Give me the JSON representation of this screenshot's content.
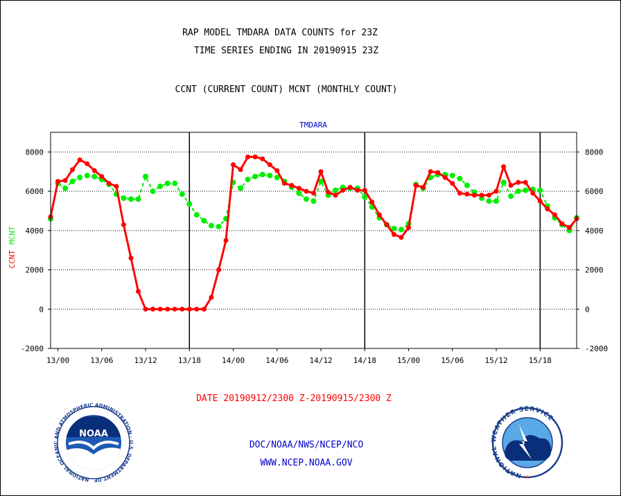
{
  "header": {
    "title_line1": "RAP MODEL TMDARA DATA COUNTS for 23Z",
    "title_line2": "TIME SERIES ENDING IN 20190915 23Z",
    "subtitle": "CCNT (CURRENT COUNT) MCNT (MONTHLY COUNT)"
  },
  "footer": {
    "date_range": "DATE 20190912/2300 Z-20190915/2300 Z",
    "org_line": "DOC/NOAA/NWS/NCEP/NCO",
    "url_line": "WWW.NCEP.NOAA.GOV",
    "noaa_logo_text": "NOAA",
    "noaa_ring_text": "NATIONAL OCEANIC AND ATMOSPHERIC ADMINISTRATION · U.S. DEPARTMENT OF COMMERCE ·",
    "nws_ring_text": "NATIONAL WEATHER SERVICE"
  },
  "colors": {
    "ccnt": "#ff0000",
    "mcnt": "#00ee00",
    "title": "#000000",
    "blue_text": "#0000cc",
    "red_text": "#ff0000"
  },
  "chart_data": {
    "type": "line",
    "title": "TMDARA",
    "ylabel_left_parts": [
      "CCNT",
      "MCNT"
    ],
    "ylim": [
      -2000,
      9000
    ],
    "y_ticks": [
      -2000,
      0,
      2000,
      4000,
      6000,
      8000
    ],
    "x_ticks": [
      "13/00",
      "13/06",
      "13/12",
      "13/18",
      "14/00",
      "14/06",
      "14/12",
      "14/18",
      "15/00",
      "15/06",
      "15/12",
      "15/18"
    ],
    "x_tick_hours": [
      1,
      7,
      13,
      19,
      25,
      31,
      37,
      43,
      49,
      55,
      61,
      67
    ],
    "day_boundaries_hours": [
      19,
      43,
      67
    ],
    "x_range_hours": [
      0,
      72
    ],
    "x_unit": "hours since 2019-09-12 23Z",
    "grid": true,
    "series": [
      {
        "name": "CCNT",
        "color": "#ff0000",
        "values": [
          4700,
          6500,
          6550,
          7100,
          7600,
          7400,
          7050,
          6750,
          6400,
          6250,
          4300,
          2600,
          900,
          0,
          0,
          0,
          0,
          0,
          0,
          0,
          0,
          0,
          600,
          2000,
          3500,
          7350,
          7100,
          7750,
          7750,
          7650,
          7350,
          7050,
          6400,
          6300,
          6150,
          6000,
          5900,
          7000,
          5950,
          5800,
          6050,
          6200,
          6050,
          6050,
          5450,
          4800,
          4300,
          3800,
          3650,
          4150,
          6300,
          6200,
          7000,
          6950,
          6700,
          6400,
          5900,
          5850,
          5800,
          5800,
          5800,
          6000,
          7250,
          6300,
          6450,
          6450,
          5900,
          5500,
          5100,
          4800,
          4350,
          4150,
          4600
        ]
      },
      {
        "name": "MCNT",
        "color": "#00ee00",
        "values": [
          4600,
          6400,
          6150,
          6500,
          6700,
          6800,
          6750,
          6600,
          6350,
          5850,
          5650,
          5600,
          5600,
          6750,
          6000,
          6250,
          6400,
          6400,
          5850,
          5350,
          4800,
          4500,
          4250,
          4200,
          4600,
          6450,
          6150,
          6600,
          6750,
          6850,
          6800,
          6700,
          6500,
          6200,
          5900,
          5600,
          5500,
          6500,
          5800,
          6050,
          6200,
          6150,
          6150,
          5700,
          5200,
          4650,
          4300,
          4100,
          4050,
          4350,
          6350,
          6150,
          6700,
          6850,
          6850,
          6800,
          6650,
          6300,
          5950,
          5650,
          5500,
          5500,
          6450,
          5750,
          6000,
          6050,
          6100,
          6050,
          5250,
          4650,
          4300,
          4000,
          4650
        ]
      }
    ]
  }
}
